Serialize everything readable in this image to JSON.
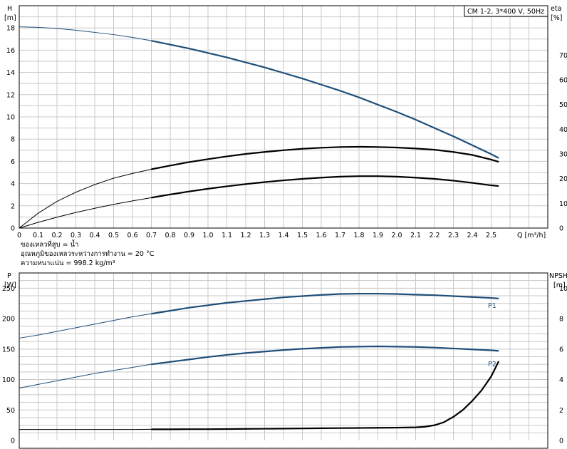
{
  "chart_data": [
    {
      "type": "line",
      "panel": "head-efficiency",
      "legend_box": "CM 1-2, 3*400 V, 50Hz",
      "ylabel_left": [
        "H",
        "[m]"
      ],
      "ylabel_right": [
        "eta",
        "[%]"
      ],
      "xlabel": "Q [m³/h]",
      "xlim": [
        0,
        2.8
      ],
      "ylim_left": [
        0,
        20
      ],
      "ylim_right": [
        0,
        90
      ],
      "grid": true,
      "x_ticks": [
        "0",
        "0.1",
        "0.2",
        "0.3",
        "0.4",
        "0.5",
        "0.6",
        "0.7",
        "0.8",
        "0.9",
        "1.0",
        "1.1",
        "1.2",
        "1.3",
        "1.4",
        "1.5",
        "1.6",
        "1.7",
        "1.8",
        "1.9",
        "2.0",
        "2.1",
        "2.2",
        "2.3",
        "2.4",
        "2.5"
      ],
      "y_ticks_left": [
        "0",
        "2",
        "4",
        "6",
        "8",
        "10",
        "12",
        "14",
        "16",
        "18"
      ],
      "y_ticks_right": [
        "0",
        "10",
        "20",
        "30",
        "40",
        "50",
        "60",
        "70"
      ],
      "series": [
        {
          "axis": "left",
          "color": "#1f4e79",
          "x": [
            0,
            0.1,
            0.2,
            0.3,
            0.4,
            0.5,
            0.6,
            0.7,
            0.8,
            0.9,
            1.0,
            1.1,
            1.2,
            1.3,
            1.4,
            1.5,
            1.6,
            1.7,
            1.8,
            1.9,
            2.0,
            2.1,
            2.2,
            2.3,
            2.4,
            2.5,
            2.54
          ],
          "y": [
            18.1,
            18.05,
            17.95,
            17.8,
            17.6,
            17.4,
            17.15,
            16.85,
            16.5,
            16.15,
            15.75,
            15.35,
            14.9,
            14.45,
            13.95,
            13.45,
            12.9,
            12.35,
            11.75,
            11.1,
            10.45,
            9.75,
            9.0,
            8.25,
            7.45,
            6.65,
            6.3
          ]
        },
        {
          "axis": "right",
          "color": "#000000",
          "x": [
            0,
            0.1,
            0.2,
            0.3,
            0.4,
            0.5,
            0.6,
            0.7,
            0.8,
            0.9,
            1.0,
            1.1,
            1.2,
            1.3,
            1.4,
            1.5,
            1.6,
            1.7,
            1.8,
            1.9,
            2.0,
            2.1,
            2.2,
            2.3,
            2.4,
            2.5,
            2.54
          ],
          "y": [
            0,
            6.0,
            10.8,
            14.5,
            17.6,
            20.2,
            22.1,
            23.8,
            25.3,
            26.7,
            27.9,
            29.0,
            30.0,
            30.8,
            31.5,
            32.1,
            32.5,
            32.8,
            32.9,
            32.8,
            32.6,
            32.2,
            31.7,
            30.8,
            29.6,
            27.7,
            26.8
          ]
        },
        {
          "axis": "right",
          "color": "#000000",
          "x": [
            0,
            0.1,
            0.2,
            0.3,
            0.4,
            0.5,
            0.6,
            0.7,
            0.8,
            0.9,
            1.0,
            1.1,
            1.2,
            1.3,
            1.4,
            1.5,
            1.6,
            1.7,
            1.8,
            1.9,
            2.0,
            2.1,
            2.2,
            2.3,
            2.4,
            2.5,
            2.54
          ],
          "y": [
            0,
            2.3,
            4.4,
            6.3,
            8.0,
            9.6,
            11.0,
            12.3,
            13.6,
            14.8,
            15.9,
            16.9,
            17.8,
            18.6,
            19.3,
            19.9,
            20.4,
            20.8,
            21.0,
            21.0,
            20.8,
            20.4,
            19.9,
            19.2,
            18.3,
            17.3,
            17.0
          ]
        }
      ]
    },
    {
      "type": "line",
      "panel": "power-npsh",
      "ylabel_left": [
        "P",
        "[W]"
      ],
      "ylabel_right": [
        "NPSH",
        "[m]"
      ],
      "xlim": [
        0,
        2.8
      ],
      "ylim_left": [
        0,
        275
      ],
      "ylim_right": [
        0,
        11
      ],
      "grid": true,
      "y_ticks_left": [
        "0",
        "50",
        "100",
        "150",
        "200",
        "250"
      ],
      "y_ticks_right": [
        "0",
        "2",
        "4",
        "6",
        "8",
        "10"
      ],
      "series": [
        {
          "name": "P1",
          "axis": "left",
          "color": "#1f4e79",
          "x": [
            0,
            0.1,
            0.2,
            0.3,
            0.4,
            0.5,
            0.6,
            0.7,
            0.8,
            0.9,
            1.0,
            1.1,
            1.2,
            1.3,
            1.4,
            1.5,
            1.6,
            1.7,
            1.8,
            1.9,
            2.0,
            2.1,
            2.2,
            2.3,
            2.4,
            2.5,
            2.54
          ],
          "y": [
            168,
            173,
            179,
            185,
            191,
            197,
            203,
            208,
            213,
            218,
            222,
            226,
            229,
            232,
            235,
            237,
            239,
            240.5,
            241,
            241,
            240.5,
            239.5,
            238.5,
            237,
            235.5,
            234,
            233
          ]
        },
        {
          "name": "P2",
          "axis": "left",
          "color": "#1f4e79",
          "x": [
            0,
            0.1,
            0.2,
            0.3,
            0.4,
            0.5,
            0.6,
            0.7,
            0.8,
            0.9,
            1.0,
            1.1,
            1.2,
            1.3,
            1.4,
            1.5,
            1.6,
            1.7,
            1.8,
            1.9,
            2.0,
            2.1,
            2.2,
            2.3,
            2.4,
            2.5,
            2.54
          ],
          "y": [
            86,
            92,
            98,
            104,
            110,
            115,
            120,
            125,
            129,
            133,
            137,
            140.5,
            143.5,
            146,
            148.5,
            150.5,
            152,
            153.5,
            154,
            154.5,
            154,
            153.5,
            152.5,
            151,
            149.5,
            148,
            147
          ]
        },
        {
          "axis": "right",
          "color": "#000000",
          "x": [
            0,
            0.1,
            0.2,
            0.3,
            0.4,
            0.5,
            0.6,
            0.7,
            0.8,
            0.9,
            1.0,
            1.1,
            1.2,
            1.3,
            1.4,
            1.5,
            1.6,
            1.7,
            1.8,
            1.9,
            2.0,
            2.1,
            2.15,
            2.2,
            2.25,
            2.3,
            2.35,
            2.4,
            2.45,
            2.5,
            2.54
          ],
          "y": [
            0.72,
            0.72,
            0.72,
            0.72,
            0.72,
            0.72,
            0.72,
            0.73,
            0.73,
            0.74,
            0.74,
            0.75,
            0.76,
            0.77,
            0.78,
            0.79,
            0.8,
            0.81,
            0.82,
            0.83,
            0.84,
            0.86,
            0.9,
            1.0,
            1.2,
            1.55,
            2.0,
            2.6,
            3.3,
            4.2,
            5.2
          ]
        }
      ]
    }
  ],
  "info_lines": [
    "ของเหลวที่สูบ = น้ำ",
    "อุณหภูมิของเหลวระหว่างการทำงาน = 20 °C",
    "ความหนาแน่น = 998.2 kg/m³"
  ]
}
